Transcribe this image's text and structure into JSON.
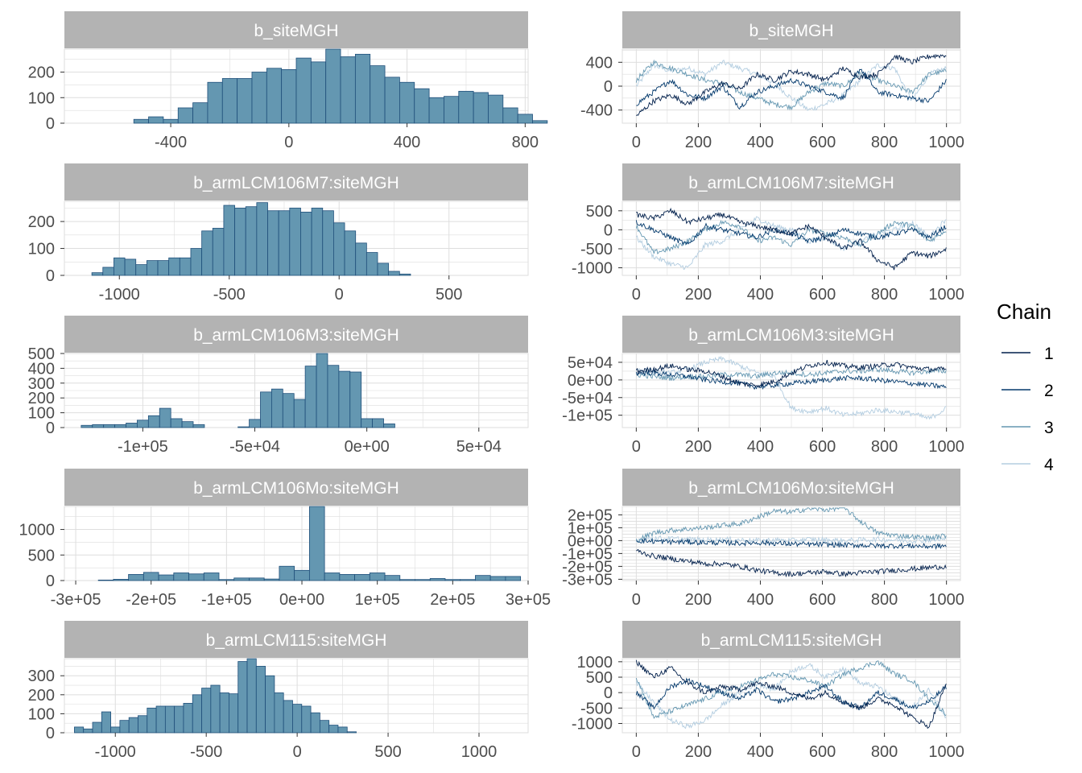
{
  "colors": {
    "strip_bg": "#b3b3b3",
    "strip_text": "#ffffff",
    "grid": "#dedede",
    "axis_text": "#4d4d4d",
    "bar_fill": "#6497b1",
    "bar_stroke": "#1f4f7a",
    "chains": [
      "#011f4b",
      "#03396c",
      "#6497b1",
      "#b3cde0"
    ]
  },
  "legend": {
    "title": "Chain",
    "entries": [
      "1",
      "2",
      "3",
      "4"
    ]
  },
  "chart_data": [
    {
      "type": "bar",
      "title": "b_siteMGH",
      "bin_width": 50,
      "bin_start": -675,
      "counts": [
        0,
        0,
        0,
        15,
        25,
        15,
        60,
        80,
        160,
        175,
        175,
        200,
        215,
        210,
        255,
        240,
        290,
        260,
        270,
        225,
        180,
        160,
        135,
        100,
        105,
        125,
        120,
        110,
        60,
        35,
        10
      ],
      "xlim": [
        -760,
        810
      ],
      "ylim": [
        0,
        290
      ],
      "xticks": [
        -400,
        0,
        400,
        800
      ],
      "xtick_labels": [
        "-400",
        "0",
        "400",
        "800"
      ],
      "yticks": [
        0,
        100,
        200
      ],
      "ytick_labels": [
        "0",
        "100",
        "200"
      ]
    },
    {
      "type": "line",
      "title": "b_siteMGH",
      "iterations": 1000,
      "xlim": [
        -45,
        1045
      ],
      "ylim": [
        -620,
        620
      ],
      "xticks": [
        0,
        200,
        400,
        600,
        800,
        1000
      ],
      "xtick_labels": [
        "0",
        "200",
        "400",
        "600",
        "800",
        "1000"
      ],
      "yticks": [
        -400,
        0,
        400
      ],
      "ytick_labels": [
        "-400",
        "0",
        "400"
      ],
      "series": [
        {
          "name": "1",
          "values": [
            -500,
            -250,
            -150,
            -300,
            -100,
            50,
            -50,
            200,
            100,
            250,
            200,
            100,
            300,
            150,
            200,
            500,
            400,
            500,
            520
          ]
        },
        {
          "name": "2",
          "values": [
            -300,
            -100,
            100,
            -150,
            -200,
            0,
            -350,
            -100,
            0,
            100,
            0,
            -100,
            -200,
            300,
            -100,
            -150,
            -200,
            -250,
            100
          ]
        },
        {
          "name": "3",
          "values": [
            100,
            400,
            300,
            200,
            100,
            50,
            -100,
            -200,
            -300,
            -350,
            -100,
            50,
            0,
            200,
            100,
            0,
            -100,
            200,
            250
          ]
        },
        {
          "name": "4",
          "values": [
            0,
            350,
            250,
            300,
            200,
            400,
            300,
            200,
            50,
            -200,
            -400,
            -300,
            -150,
            100,
            350,
            300,
            -250,
            200,
            300
          ]
        }
      ]
    },
    {
      "type": "bar",
      "title": "b_armLCM106M7:siteMGH",
      "bin_width": 50,
      "bin_start": -1125,
      "counts": [
        10,
        30,
        65,
        60,
        40,
        55,
        55,
        65,
        65,
        100,
        165,
        175,
        260,
        250,
        255,
        270,
        240,
        240,
        250,
        235,
        250,
        240,
        195,
        165,
        120,
        85,
        45,
        15,
        5
      ],
      "xlim": [
        -1250,
        860
      ],
      "ylim": [
        0,
        275
      ],
      "xticks": [
        -1000,
        -500,
        0,
        500
      ],
      "xtick_labels": [
        "-1000",
        "-500",
        "0",
        "500"
      ],
      "yticks": [
        0,
        100,
        200
      ],
      "ytick_labels": [
        "0",
        "100",
        "200"
      ]
    },
    {
      "type": "line",
      "title": "b_armLCM106M7:siteMGH",
      "iterations": 1000,
      "xlim": [
        -45,
        1045
      ],
      "ylim": [
        -1200,
        750
      ],
      "xticks": [
        0,
        200,
        400,
        600,
        800,
        1000
      ],
      "xtick_labels": [
        "0",
        "200",
        "400",
        "600",
        "800",
        "1000"
      ],
      "yticks": [
        -1000,
        -500,
        0,
        500
      ],
      "ytick_labels": [
        "-1000",
        "-500",
        "0",
        "500"
      ],
      "series": [
        {
          "name": "1",
          "values": [
            400,
            300,
            500,
            200,
            300,
            400,
            200,
            100,
            0,
            -100,
            100,
            -200,
            -500,
            -300,
            -800,
            -1000,
            -600,
            -700,
            -500
          ]
        },
        {
          "name": "2",
          "values": [
            200,
            0,
            -200,
            -400,
            100,
            0,
            -100,
            -200,
            0,
            -100,
            -300,
            -200,
            0,
            -100,
            -200,
            -100,
            0,
            -200,
            100
          ]
        },
        {
          "name": "3",
          "values": [
            100,
            -600,
            -500,
            -300,
            0,
            200,
            100,
            -300,
            -200,
            -400,
            0,
            -100,
            -200,
            -400,
            -100,
            200,
            100,
            -300,
            0
          ]
        },
        {
          "name": "4",
          "values": [
            -200,
            -700,
            -900,
            -1000,
            -400,
            -300,
            0,
            300,
            100,
            0,
            -300,
            -200,
            -500,
            -300,
            -100,
            0,
            200,
            -200,
            300
          ]
        }
      ]
    },
    {
      "type": "bar",
      "title": "b_armLCM106M3:siteMGH",
      "bin_width": 5000,
      "bin_start": -127500,
      "counts": [
        15,
        20,
        20,
        20,
        30,
        50,
        80,
        130,
        60,
        40,
        20,
        0,
        0,
        0,
        5,
        55,
        240,
        260,
        230,
        190,
        415,
        500,
        420,
        380,
        375,
        60,
        60,
        25
      ],
      "xlim": [
        -135000,
        72000
      ],
      "ylim": [
        0,
        500
      ],
      "xticks": [
        -100000,
        -50000,
        0,
        50000
      ],
      "xtick_labels": [
        "-1e+05",
        "-5e+04",
        "0e+00",
        "5e+04"
      ],
      "yticks": [
        0,
        100,
        200,
        300,
        400,
        500
      ],
      "ytick_labels": [
        "0",
        "100",
        "200",
        "300",
        "400",
        "500"
      ]
    },
    {
      "type": "line",
      "title": "b_armLCM106M3:siteMGH",
      "iterations": 1000,
      "xlim": [
        -45,
        1045
      ],
      "ylim": [
        -135000,
        75000
      ],
      "xticks": [
        0,
        200,
        400,
        600,
        800,
        1000
      ],
      "xtick_labels": [
        "0",
        "200",
        "400",
        "600",
        "800",
        "1000"
      ],
      "yticks": [
        -100000,
        -50000,
        0,
        50000
      ],
      "ytick_labels": [
        "-1e+05",
        "-5e+04",
        "0e+00",
        "5e+04"
      ],
      "series": [
        {
          "name": "1",
          "values": [
            25000,
            30000,
            40000,
            30000,
            25000,
            10000,
            -10000,
            -15000,
            -5000,
            20000,
            40000,
            50000,
            40000,
            35000,
            40000,
            45000,
            35000,
            30000,
            30000
          ]
        },
        {
          "name": "2",
          "values": [
            20000,
            20000,
            15000,
            10000,
            0,
            -5000,
            -10000,
            -20000,
            -15000,
            -10000,
            -5000,
            0,
            5000,
            5000,
            0,
            -5000,
            -10000,
            -15000,
            -20000
          ]
        },
        {
          "name": "3",
          "values": [
            15000,
            10000,
            5000,
            10000,
            10000,
            15000,
            15000,
            10000,
            20000,
            20000,
            15000,
            20000,
            25000,
            25000,
            30000,
            25000,
            20000,
            25000,
            25000
          ]
        },
        {
          "name": "4",
          "values": [
            30000,
            25000,
            20000,
            30000,
            50000,
            60000,
            40000,
            20000,
            10000,
            -80000,
            -90000,
            -80000,
            -100000,
            -95000,
            -85000,
            -90000,
            -95000,
            -110000,
            -80000
          ]
        }
      ]
    },
    {
      "type": "bar",
      "title": "b_armLCM106Mo:siteMGH",
      "bin_width": 20000,
      "bin_start": -290000,
      "counts": [
        0,
        10,
        25,
        120,
        160,
        110,
        150,
        130,
        150,
        20,
        50,
        50,
        30,
        280,
        200,
        1450,
        150,
        120,
        120,
        150,
        100,
        20,
        20,
        40,
        20,
        20,
        100,
        80,
        80
      ],
      "xlim": [
        -315000,
        300000
      ],
      "ylim": [
        0,
        1450
      ],
      "xticks": [
        -300000,
        -200000,
        -100000,
        0,
        100000,
        200000,
        300000
      ],
      "xtick_labels": [
        "-3e+05",
        "-2e+05",
        "-1e+05",
        "0e+00",
        "1e+05",
        "2e+05",
        "3e+05"
      ],
      "yticks": [
        0,
        500,
        1000
      ],
      "ytick_labels": [
        "0",
        "500",
        "1000"
      ]
    },
    {
      "type": "line",
      "title": "b_armLCM106Mo:siteMGH",
      "iterations": 1000,
      "xlim": [
        -45,
        1045
      ],
      "ylim": [
        -310000,
        265000
      ],
      "xticks": [
        0,
        200,
        400,
        600,
        800,
        1000
      ],
      "xtick_labels": [
        "0",
        "200",
        "400",
        "600",
        "800",
        "1000"
      ],
      "yticks": [
        -300000,
        -250000,
        -200000,
        -150000,
        -100000,
        -50000,
        0,
        50000,
        100000,
        150000,
        200000
      ],
      "ytick_labels": [
        "-3e+05",
        "",
        "-2e+05",
        "",
        "-1e+05",
        "",
        "0e+00",
        "",
        "1e+05",
        "",
        "2e+05"
      ],
      "series": [
        {
          "name": "1",
          "values": [
            -80000,
            -120000,
            -140000,
            -160000,
            -180000,
            -180000,
            -200000,
            -230000,
            -250000,
            -260000,
            -250000,
            -240000,
            -260000,
            -250000,
            -240000,
            -230000,
            -220000,
            -210000,
            -200000
          ]
        },
        {
          "name": "2",
          "values": [
            0,
            -5000,
            -10000,
            -10000,
            -15000,
            -15000,
            -20000,
            -15000,
            -20000,
            -25000,
            -30000,
            -30000,
            -35000,
            -35000,
            -40000,
            -40000,
            -40000,
            -45000,
            -40000
          ]
        },
        {
          "name": "3",
          "values": [
            0,
            60000,
            80000,
            90000,
            100000,
            120000,
            130000,
            180000,
            230000,
            220000,
            250000,
            240000,
            260000,
            150000,
            60000,
            40000,
            30000,
            20000,
            40000
          ]
        },
        {
          "name": "4",
          "values": [
            10000,
            20000,
            15000,
            10000,
            5000,
            10000,
            5000,
            0,
            5000,
            0,
            10000,
            5000,
            0,
            5000,
            10000,
            5000,
            0,
            5000,
            10000
          ]
        }
      ]
    },
    {
      "type": "bar",
      "title": "b_armLCM115:siteMGH",
      "bin_width": 50,
      "bin_start": -1225,
      "counts": [
        30,
        20,
        55,
        110,
        30,
        65,
        80,
        90,
        130,
        140,
        140,
        140,
        155,
        200,
        235,
        250,
        210,
        205,
        375,
        390,
        350,
        300,
        210,
        170,
        150,
        140,
        105,
        65,
        40,
        30,
        5,
        0
      ],
      "xlim": [
        -1280,
        1270
      ],
      "ylim": [
        0,
        390
      ],
      "xticks": [
        -1000,
        -500,
        0,
        500,
        1000
      ],
      "xtick_labels": [
        "-1000",
        "-500",
        "0",
        "500",
        "1000"
      ],
      "yticks": [
        0,
        100,
        200,
        300
      ],
      "ytick_labels": [
        "0",
        "100",
        "200",
        "300"
      ]
    },
    {
      "type": "line",
      "title": "b_armLCM115:siteMGH",
      "iterations": 1000,
      "xlim": [
        -45,
        1045
      ],
      "ylim": [
        -1300,
        1100
      ],
      "xticks": [
        0,
        200,
        400,
        600,
        800,
        1000
      ],
      "xtick_labels": [
        "0",
        "200",
        "400",
        "600",
        "800",
        "1000"
      ],
      "yticks": [
        -1000,
        -500,
        0,
        500,
        1000
      ],
      "ytick_labels": [
        "-1000",
        "-500",
        "0",
        "500",
        "1000"
      ],
      "series": [
        {
          "name": "1",
          "values": [
            1000,
            500,
            800,
            300,
            0,
            200,
            100,
            300,
            200,
            0,
            -200,
            0,
            -300,
            -500,
            -200,
            -400,
            -800,
            -1100,
            300
          ]
        },
        {
          "name": "2",
          "values": [
            0,
            -500,
            200,
            400,
            200,
            0,
            -200,
            100,
            -300,
            -200,
            0,
            200,
            -300,
            -500,
            0,
            -200,
            -500,
            -300,
            200
          ]
        },
        {
          "name": "3",
          "values": [
            500,
            -800,
            -600,
            -400,
            -200,
            0,
            200,
            400,
            600,
            500,
            400,
            200,
            600,
            800,
            1000,
            600,
            400,
            -200,
            -700
          ]
        },
        {
          "name": "4",
          "values": [
            300,
            -300,
            -900,
            -1100,
            -900,
            -400,
            0,
            300,
            100,
            700,
            900,
            500,
            800,
            300,
            200,
            -200,
            -500,
            100,
            -800
          ]
        }
      ]
    }
  ]
}
